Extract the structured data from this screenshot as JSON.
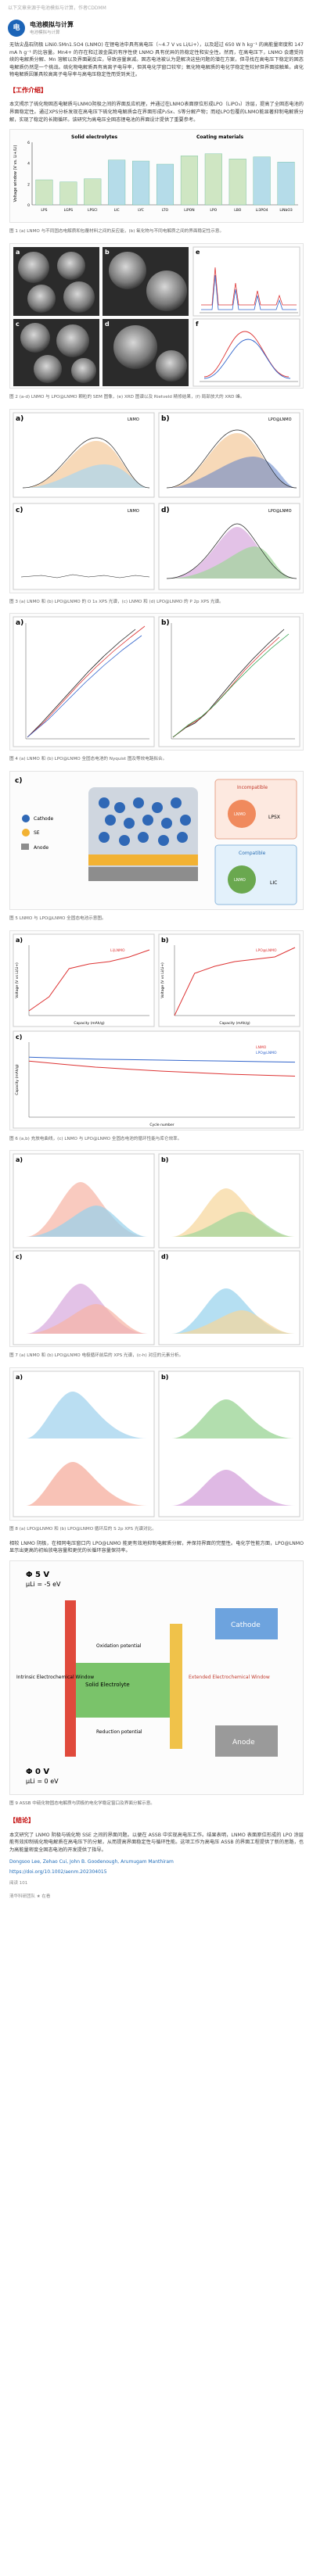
{
  "header": {
    "breadcrumb": "以下文章来源于电池模拟与计算，作者CDDMM",
    "account_name": "电池模拟与计算",
    "account_sub": "电池模拟与计算",
    "avatar_text": "电"
  },
  "intro": "无钴尖晶石阴极 LiNi0.5Mn1.5O4 (LNMO) 在锂电池中具有高电压（~4.7 V vs Li/Li+），以及超过 650 W h kg⁻¹ 的高能量密度和 147 mA h g⁻¹ 的比容量。Mn4+ 的存在和过渡金属的有序性使 LNMO 具有优异的热稳定性和安全性。然而，在高电压下，LNMO 会遭受持续的电解质分解、Mn 溶解以及界面副反应，导致容量衰减。固态电池被认为是解决这些问题的潜在方案，但寻找在高电压下稳定的固态电解质仍然是一个挑战。硫化物电解质具有高离子电导率，但其电化学窗口较窄；氧化物电解质的电化学稳定性较好但界面接触差。卤化物电解质因兼具较高离子电导率与高电压稳定性而受到关注。",
  "sec1": "【工作介绍】",
  "work": "本文揭示了硫化物固态电解质与LNMO阴极之间的界面反应机理，并通过在LNMO表面原位形成LPO（LiPO₃）涂层，提高了全固态电池的界面稳定性。通过XPS分析发现在高电压下硫化物电解质会在界面形成P₂Sx、S等分解产物；而经LPO包覆的LNMO能显著抑制电解质分解，实现了稳定的长期循环。该研究为高电压全固态锂电池的界面设计提供了重要参考。",
  "fig1_caption": "图 1 (a) LNMO 与不同固态电解质和包覆材料之间的反应能，(b) 氧化物与不同电解质之间的界面稳定性示意。",
  "fig1": {
    "title_left": "Solid electrolytes",
    "title_right": "Coating materials",
    "ylabel": "Voltage window (V vs. Li+/Li)"
  },
  "fig2_caption": "图 2 (a-d) LNMO 与 LPO@LNMO 颗粒的 SEM 图像，(e) XRD 图谱以及 Rietveld 精修结果，(f) 局部放大的 XRD 峰。",
  "fig3_caption": "图 3 (a) LNMO 和 (b) LPO@LNMO 的 O 1s XPS 光谱，(c) LNMO 和 (d) LPO@LNMO 的 P 2p XPS 光谱。",
  "fig3": {
    "a": "LNMO",
    "b": "LPO@LNMO",
    "c": "LNMO",
    "d": "LPO@LNMO",
    "xa": "Binding Energy (eV)",
    "ya": "Intensity (a.u.)",
    "o1s": "O 1s",
    "p2p": "P 2p",
    "legend": [
      "Original data",
      "Background",
      "Sum",
      "TM-O (Ni, Mn)",
      "C=O, C-O"
    ]
  },
  "fig4_caption": "图 4 (a) LNMO 和 (b) LPO@LNMO 全固态电池的 Nyquist 图及等效电路拟合。",
  "fig4": {
    "xlabel": "Z_re (Ω)",
    "ylabel": "-Z_im (Ω)",
    "legend": [
      "1st cycle",
      "5th cycle",
      "10th cycle",
      "20th cycle",
      "50th cycle"
    ]
  },
  "fig5_caption": "图 5 LNMO 与 LPO@LNMO 全固态电池示意图。",
  "fig5": {
    "cathode": "Cathode",
    "se": "SE",
    "anode": "Anode",
    "incompatible": "Incompatible",
    "compatible": "Compatible",
    "lpsx": "LPSX",
    "lic": "LIC",
    "lnmo": "LNMO"
  },
  "fig6_caption": "图 6 (a,b) 充放电曲线，(c) LNMO 与 LPO@LNMO 全固态电池的循环性能与库仑效率。",
  "fig6": {
    "xlabel": "Capacity (mAh/g)",
    "ylabel": "Voltage (V vs Li/Li+)",
    "cycle_x": "Cycle number",
    "cap_y": "Capacity (mAh/g)",
    "ce_y": "Coulombic efficiency (%)",
    "legend_a": [
      "Li|LNMO",
      "LPO@LNMO"
    ],
    "legend_c": [
      "LNMO",
      "LPO@LNMO"
    ]
  },
  "fig7_caption": "图 7 (a) LNMO 和 (b) LPO@LNMO 电极循环前后的 XPS 光谱，(c-h) 对应的元素分析。",
  "fig8_caption": "图 8 (a) LPO@LNMO 和 (b) LPO@LNMO 循环后的 S 2p XPS 光谱对比。",
  "summary_para": "相较 LNMO 阴极，在相同电压窗口内 LPO@LNMO 能更有效地抑制电解质分解，并保持界面的完整性。电化学性能方面，LPO@LNMO 显示出更高的初始放电容量和更优的长循环容量保持率。",
  "fig9_caption": "图 9 ASSB 中硫化物固态电解质与阴极的电化学稳定窗口及界面分解示意。",
  "fig9": {
    "top": "Φ 5 V",
    "mu_top": "μLi = -5 eV",
    "bottom": "Φ 0 V",
    "mu_bottom": "μLi = 0 eV",
    "intrinsic": "Intrinsic Electrochemical Window",
    "extended": "Extended Electrochemical Window",
    "oxidation": "Oxidation potential",
    "reduction": "Reduction potential",
    "cathode": "Cathode",
    "anode": "Anode",
    "solid": "Solid Electrolyte"
  },
  "sec2": "【结论】",
  "conclusion": "本文研究了 LNMO 阴极与硫化物 SSE 之间的界面问题。以便在 ASSB 中实现高电压工作。结果表明，LNMO 表面原位形成的 LPO 涂层能有效抑制硫化物电解质在高电压下的分解，从而提高界面稳定性与循环性能。这项工作为高电压 ASSB 的界面工程提供了新的思路，也为高能量密度全固态电池的开发提供了指导。",
  "refs": {
    "title": "Dongsoo Lee, Zehao Cui, John B. Goodenough, Arumugam Manthiram",
    "doi": "https://doi.org/10.1002/aenm.202304015"
  },
  "footer": {
    "read": "阅读 101",
    "source": "清华科研团队  ★ 在看"
  },
  "chart_data": [
    {
      "type": "bar",
      "title": "",
      "categories": [
        "LPS",
        "LGPS",
        "LPSCl",
        "LIC",
        "LYC",
        "LTO",
        "LiPON",
        "LPO",
        "LBO",
        "Li3PO4",
        "LiNbO3"
      ],
      "values": [
        2.4,
        2.2,
        2.5,
        4.3,
        4.2,
        3.9,
        4.7,
        4.9,
        4.4,
        4.6,
        4.1
      ],
      "ylabel": "Voltage window (V vs. Li+/Li)",
      "ylim": [
        0,
        6
      ],
      "colors": [
        "#cfe6c3",
        "#cfe6c3",
        "#cfe6c3",
        "#b5dce9",
        "#b5dce9",
        "#b5dce9",
        "#cfe6c3",
        "#cfe6c3",
        "#cfe6c3",
        "#b5dce9",
        "#b5dce9"
      ]
    },
    {
      "type": "line",
      "title": "LNMO",
      "x": [
        0,
        20,
        40,
        60,
        80,
        100,
        120
      ],
      "series": [
        {
          "name": "Li|LNMO",
          "values": [
            3.6,
            3.9,
            4.5,
            4.6,
            4.65,
            4.75,
            4.9
          ]
        }
      ],
      "xlabel": "Capacity (mAh/g)",
      "ylabel": "Voltage (V vs Li/Li+)",
      "ylim": [
        3.5,
        5.0
      ]
    },
    {
      "type": "line",
      "title": "LPO@LNMO",
      "x": [
        0,
        20,
        40,
        60,
        80,
        100,
        120
      ],
      "series": [
        {
          "name": "LPO@LNMO",
          "values": [
            3.5,
            4.4,
            4.55,
            4.65,
            4.7,
            4.75,
            4.95
          ]
        }
      ],
      "xlabel": "Capacity (mAh/g)",
      "ylabel": "Voltage (V vs Li/Li+)",
      "ylim": [
        3.5,
        5.0
      ]
    },
    {
      "type": "line",
      "title": "",
      "x": [
        0,
        25,
        50,
        75,
        100,
        125,
        150,
        175,
        200
      ],
      "series": [
        {
          "name": "LNMO",
          "values": [
            112,
            106,
            100,
            96,
            92,
            89,
            86,
            84,
            82
          ]
        },
        {
          "name": "LPO@LNMO",
          "values": [
            120,
            118,
            116,
            115,
            114,
            113,
            112,
            111,
            110
          ]
        }
      ],
      "xlabel": "Cycle number",
      "ylabel": "Capacity (mAh/g)",
      "ylim": [
        0,
        150
      ]
    }
  ]
}
